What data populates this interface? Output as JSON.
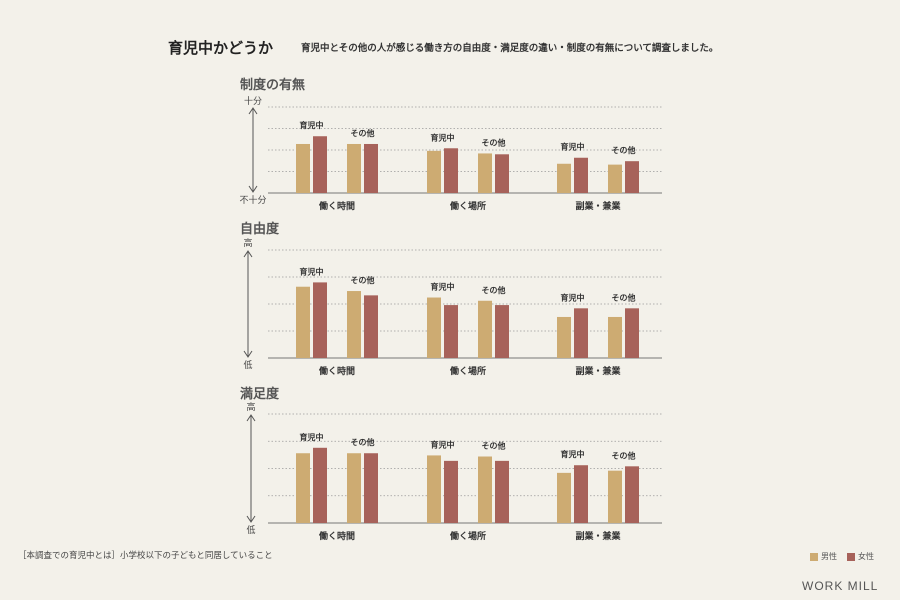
{
  "header": {
    "title": "育児中かどうか",
    "subtitle": "育児中とその他の人が感じる働き方の自由度・満足度の違い・制度の有無について調査しました。"
  },
  "colors": {
    "male": "#cdab72",
    "female": "#a7625a"
  },
  "legend": {
    "male": "男性",
    "female": "女性"
  },
  "footnote": "［本調査での育児中とは］小学校以下の子どもと同居していること",
  "brand": "WORK MILL",
  "chart_data": [
    {
      "type": "bar",
      "title": "制度の有無",
      "axis_top": "十分",
      "axis_bottom": "不十分",
      "ylim": [
        0,
        100
      ],
      "categories": [
        "働く時間",
        "働く場所",
        "副業・兼業"
      ],
      "groups": [
        "育児中",
        "その他"
      ],
      "series": [
        {
          "name": "男性",
          "values": [
            [
              57,
              57
            ],
            [
              49,
              46
            ],
            [
              34,
              33
            ]
          ]
        },
        {
          "name": "女性",
          "values": [
            [
              66,
              57
            ],
            [
              52,
              45
            ],
            [
              41,
              37
            ]
          ]
        }
      ]
    },
    {
      "type": "bar",
      "title": "自由度",
      "axis_top": "高",
      "axis_bottom": "低",
      "ylim": [
        0,
        100
      ],
      "categories": [
        "働く時間",
        "働く場所",
        "副業・兼業"
      ],
      "groups": [
        "育児中",
        "その他"
      ],
      "series": [
        {
          "name": "男性",
          "values": [
            [
              66,
              62
            ],
            [
              56,
              53
            ],
            [
              38,
              38
            ]
          ]
        },
        {
          "name": "女性",
          "values": [
            [
              70,
              58
            ],
            [
              49,
              49
            ],
            [
              46,
              46
            ]
          ]
        }
      ]
    },
    {
      "type": "bar",
      "title": "満足度",
      "axis_top": "高",
      "axis_bottom": "低",
      "ylim": [
        0,
        100
      ],
      "categories": [
        "働く時間",
        "働く場所",
        "副業・兼業"
      ],
      "groups": [
        "育児中",
        "その他"
      ],
      "series": [
        {
          "name": "男性",
          "values": [
            [
              64,
              64
            ],
            [
              62,
              61
            ],
            [
              46,
              48
            ]
          ]
        },
        {
          "name": "女性",
          "values": [
            [
              69,
              64
            ],
            [
              57,
              57
            ],
            [
              53,
              52
            ]
          ]
        }
      ]
    }
  ]
}
